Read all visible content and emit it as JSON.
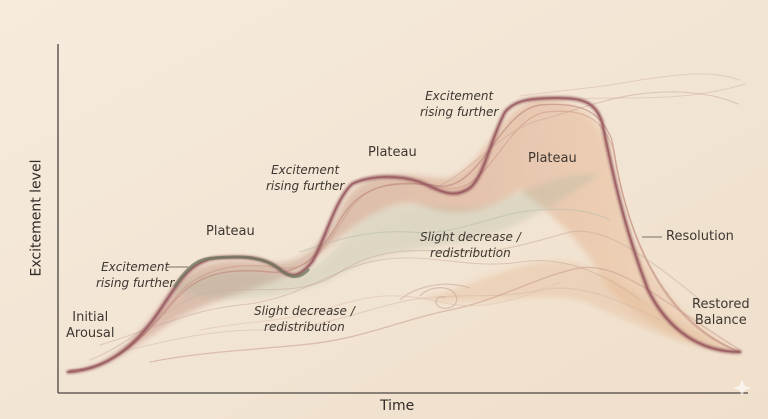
{
  "axes": {
    "y_label": "Excitement level",
    "x_label": "Time"
  },
  "stages": {
    "initial_arousal": {
      "line1": "Initial",
      "line2": "Arousal"
    },
    "rising_1": {
      "line1": "Excitement",
      "line2": "rising further"
    },
    "plateau_1": "Plateau",
    "decrease_1": {
      "line1": "Slight decrease /",
      "line2": "redistribution"
    },
    "rising_2": {
      "line1": "Excitement",
      "line2": "rising further"
    },
    "plateau_2": "Plateau",
    "decrease_2": {
      "line1": "Slight decrease /",
      "line2": "redistribution"
    },
    "rising_3": {
      "line1": "Excitement",
      "line2": "rising further"
    },
    "plateau_3": "Plateau",
    "resolution": "Resolution",
    "restored_balance": {
      "line1": "Restored",
      "line2": "Balance"
    }
  },
  "colors": {
    "background": "#f3e6d6",
    "axis": "#4b4440",
    "main_curve": "#8b4a52",
    "plateau_green": "#6f7a60",
    "wash_rose": "#c77d74",
    "wash_peach": "#e2b48c",
    "wash_sage": "#a9b59b"
  }
}
